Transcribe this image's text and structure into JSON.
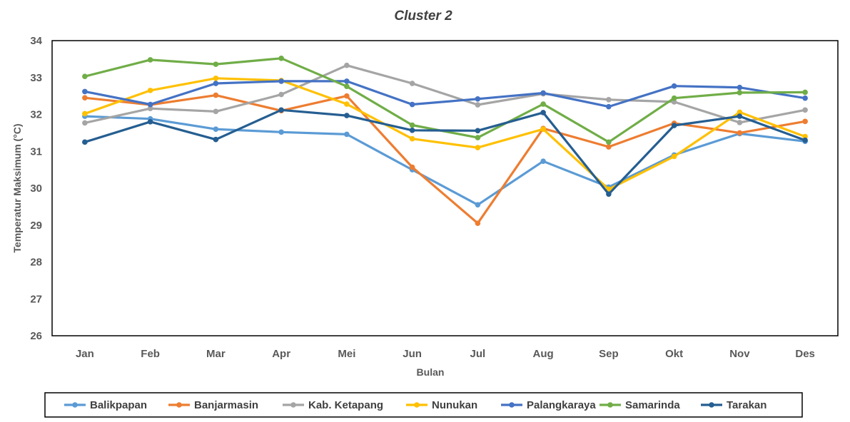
{
  "chart_data": {
    "type": "line",
    "title": "Cluster 2",
    "xlabel": "Bulan",
    "ylabel": "Temperatur Maksimum (°C)",
    "ylim": [
      26,
      34
    ],
    "yticks": [
      26,
      27,
      28,
      29,
      30,
      31,
      32,
      33,
      34
    ],
    "grid": false,
    "legend_position": "bottom",
    "categories": [
      "Jan",
      "Feb",
      "Mar",
      "Apr",
      "Mei",
      "Jun",
      "Jul",
      "Aug",
      "Sep",
      "Okt",
      "Nov",
      "Des"
    ],
    "series": [
      {
        "name": "Balikpapan",
        "color": "#5B9BD5",
        "values": [
          31.95,
          31.88,
          31.6,
          31.52,
          31.46,
          30.5,
          29.55,
          30.73,
          30.03,
          30.9,
          31.48,
          31.27
        ]
      },
      {
        "name": "Banjarmasin",
        "color": "#ED7D31",
        "values": [
          32.45,
          32.26,
          32.52,
          32.1,
          32.5,
          30.57,
          29.05,
          31.62,
          31.12,
          31.76,
          31.5,
          31.81
        ]
      },
      {
        "name": "Kab. Ketapang",
        "color": "#A5A5A5",
        "values": [
          31.77,
          32.16,
          32.08,
          32.54,
          33.33,
          32.84,
          32.26,
          32.56,
          32.4,
          32.34,
          31.78,
          32.12
        ]
      },
      {
        "name": "Nunukan",
        "color": "#FFC000",
        "values": [
          32.02,
          32.65,
          32.98,
          32.92,
          32.28,
          31.34,
          31.1,
          31.6,
          29.97,
          30.86,
          32.06,
          31.4
        ]
      },
      {
        "name": "Palangkaraya",
        "color": "#4472C4",
        "values": [
          32.62,
          32.27,
          32.84,
          32.9,
          32.9,
          32.27,
          32.42,
          32.58,
          32.21,
          32.77,
          32.73,
          32.44
        ]
      },
      {
        "name": "Samarinda",
        "color": "#70AD47",
        "values": [
          33.03,
          33.48,
          33.36,
          33.52,
          32.76,
          31.71,
          31.37,
          32.28,
          31.25,
          32.44,
          32.59,
          32.6
        ]
      },
      {
        "name": "Tarakan",
        "color": "#255E91",
        "values": [
          31.25,
          31.8,
          31.32,
          32.12,
          31.97,
          31.57,
          31.56,
          32.05,
          29.84,
          31.7,
          31.95,
          31.3
        ]
      }
    ]
  }
}
